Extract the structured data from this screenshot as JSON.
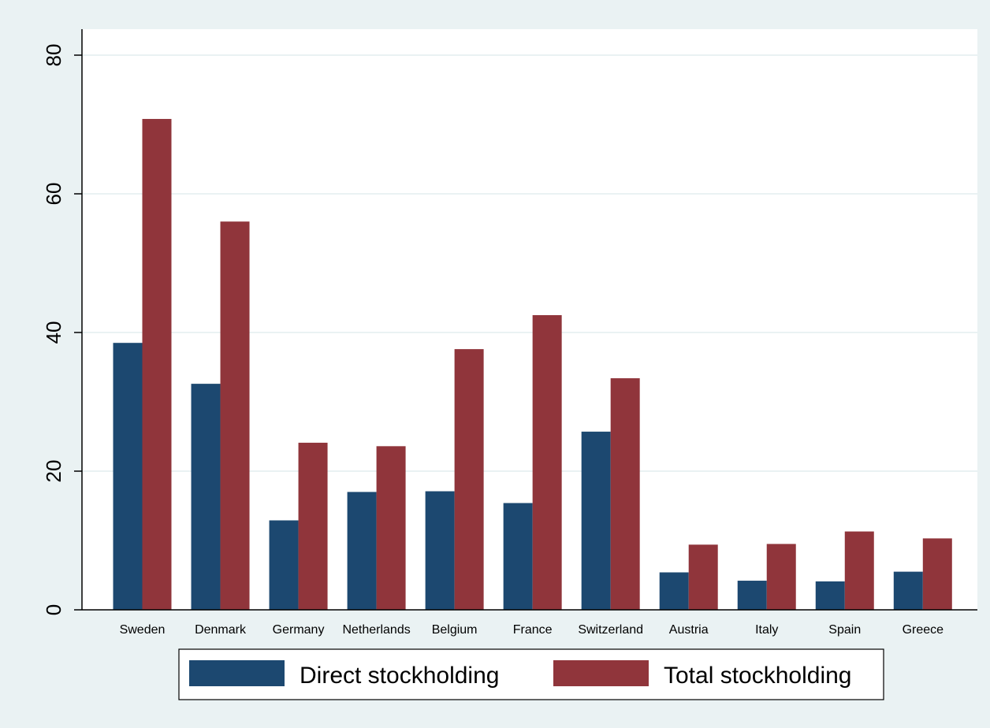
{
  "chart_data": {
    "type": "bar",
    "title": "",
    "xlabel": "",
    "ylabel": "",
    "categories": [
      "Sweden",
      "Denmark",
      "Germany",
      "Netherlands",
      "Belgium",
      "France",
      "Switzerland",
      "Austria",
      "Italy",
      "Spain",
      "Greece"
    ],
    "series": [
      {
        "name": "Direct stockholding",
        "color": "#1c4870",
        "values": [
          38.5,
          32.6,
          12.9,
          17.0,
          17.1,
          15.4,
          25.7,
          5.4,
          4.2,
          4.1,
          5.5
        ]
      },
      {
        "name": "Total stockholding",
        "color": "#90353b",
        "values": [
          70.8,
          56.0,
          24.1,
          23.6,
          37.6,
          42.5,
          33.4,
          9.4,
          9.5,
          11.3,
          10.3
        ]
      }
    ],
    "ylim": [
      0,
      80
    ],
    "yticks": [
      0,
      20,
      40,
      60,
      80
    ],
    "grid": true,
    "legend": "bottom"
  }
}
